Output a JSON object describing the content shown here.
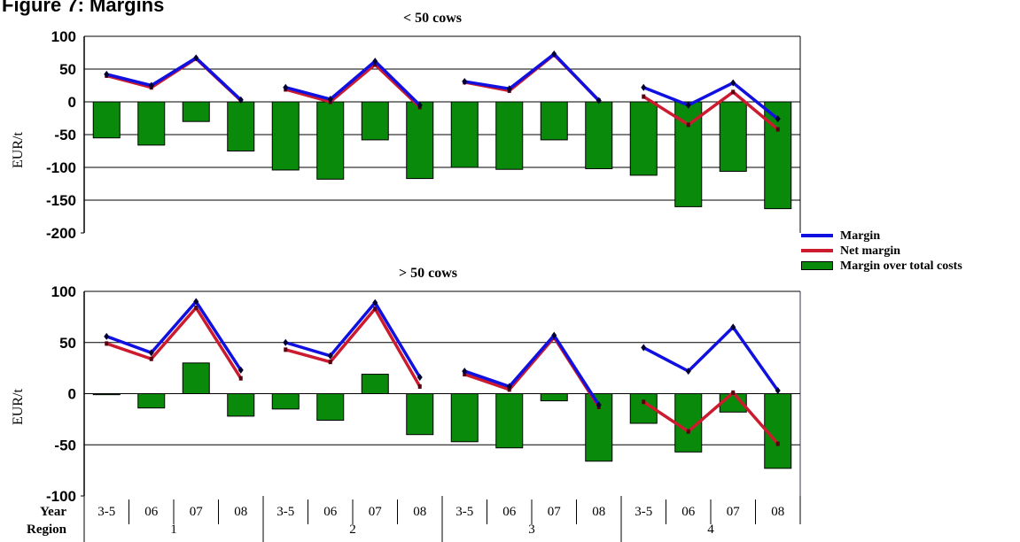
{
  "title": "Figure 7: Margins",
  "chart_data": [
    {
      "type": "bar",
      "title": "< 50 cows",
      "ylabel": "EUR/t",
      "ylim": [
        -200,
        100
      ],
      "yticks": [
        "100",
        "50",
        "0",
        "-50",
        "-100",
        "-150",
        "-200"
      ],
      "grid": true,
      "categories": [
        "3-5",
        "06",
        "07",
        "08",
        "3-5",
        "06",
        "07",
        "08",
        "3-5",
        "06",
        "07",
        "08",
        "3-5",
        "06",
        "07",
        "08"
      ],
      "regions": [
        "1",
        "2",
        "3",
        "4"
      ],
      "series": [
        {
          "name": "Margin",
          "kind": "line",
          "color": "#1010e0",
          "values": [
            42,
            25,
            67,
            3,
            22,
            4,
            62,
            -5,
            31,
            20,
            73,
            2,
            22,
            -5,
            29,
            -26
          ]
        },
        {
          "name": "Net margin",
          "kind": "line",
          "color": "#cc1a2e",
          "values": [
            40,
            22,
            66,
            2,
            19,
            0,
            57,
            -8,
            30,
            17,
            72,
            2,
            8,
            -35,
            15,
            -42
          ]
        },
        {
          "name": "Margin over total costs",
          "kind": "bar",
          "color": "#0a8a0a",
          "values": [
            -55,
            -66,
            -30,
            -75,
            -104,
            -118,
            -58,
            -117,
            -100,
            -103,
            -58,
            -102,
            -112,
            -160,
            -106,
            -163
          ]
        }
      ]
    },
    {
      "type": "bar",
      "title": "> 50 cows",
      "ylabel": "EUR/t",
      "ylim": [
        -100,
        100
      ],
      "yticks": [
        "100",
        "50",
        "0",
        "-50",
        "-100"
      ],
      "grid": true,
      "categories": [
        "3-5",
        "06",
        "07",
        "08",
        "3-5",
        "06",
        "07",
        "08",
        "3-5",
        "06",
        "07",
        "08",
        "3-5",
        "06",
        "07",
        "08"
      ],
      "regions": [
        "1",
        "2",
        "3",
        "4"
      ],
      "series": [
        {
          "name": "Margin",
          "kind": "line",
          "color": "#1010e0",
          "values": [
            56,
            40,
            90,
            23,
            50,
            37,
            89,
            16,
            22,
            7,
            57,
            -11,
            45,
            22,
            65,
            3
          ]
        },
        {
          "name": "Net margin",
          "kind": "line",
          "color": "#cc1a2e",
          "values": [
            49,
            34,
            84,
            15,
            43,
            31,
            83,
            7,
            19,
            4,
            55,
            -13,
            -8,
            -37,
            1,
            -49
          ]
        },
        {
          "name": "Margin over total costs",
          "kind": "bar",
          "color": "#0a8a0a",
          "values": [
            -1,
            -14,
            30,
            -22,
            -15,
            -26,
            19,
            -40,
            -47,
            -53,
            -7,
            -66,
            -29,
            -57,
            -18,
            -73
          ]
        }
      ]
    }
  ],
  "axis": {
    "year_label": "Year",
    "region_label": "Region"
  },
  "legend": {
    "position": "right",
    "items": [
      {
        "label": "Margin",
        "color": "#1010e0",
        "kind": "line"
      },
      {
        "label": "Net margin",
        "color": "#cc1a2e",
        "kind": "line"
      },
      {
        "label": "Margin over total costs",
        "color": "#0a8a0a",
        "kind": "bar"
      }
    ]
  }
}
